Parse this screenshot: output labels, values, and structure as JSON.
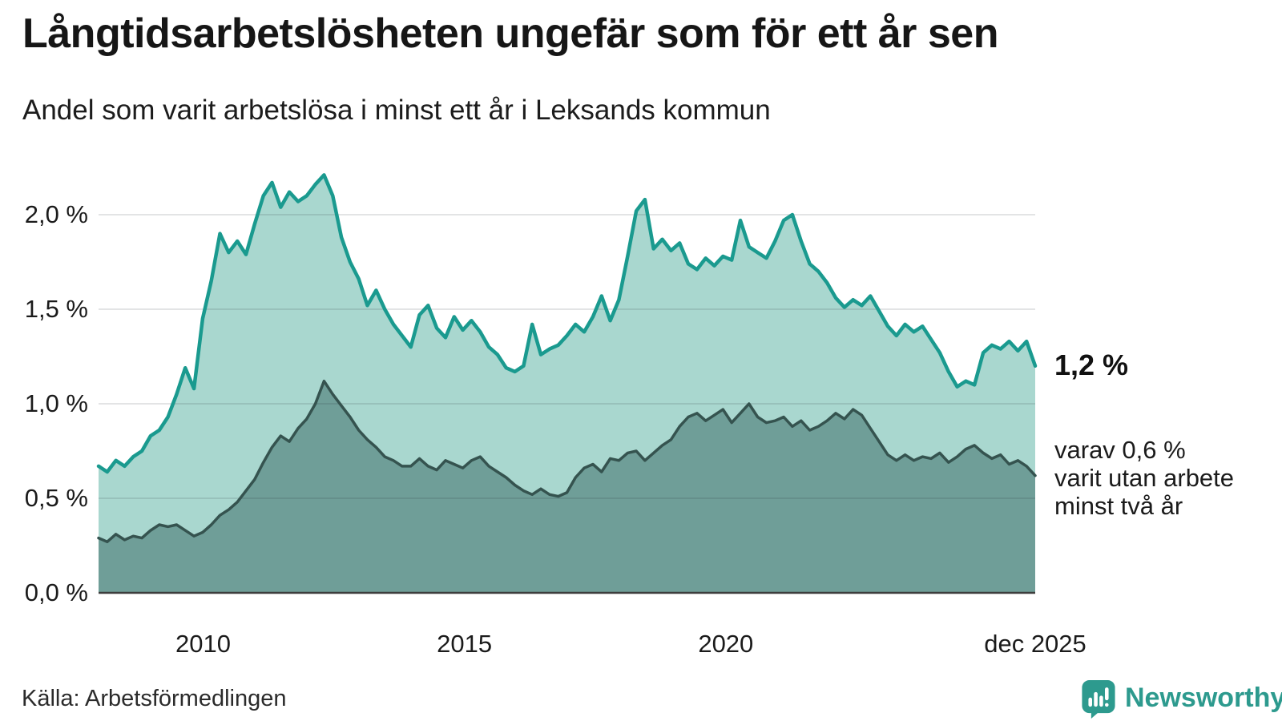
{
  "header": {
    "title": "Långtidsarbetslösheten ungefär som för ett år sen",
    "subtitle": "Andel som varit arbetslösa i minst ett år i Leksands kommun"
  },
  "chart_data": {
    "type": "area",
    "title": "Långtidsarbetslösheten ungefär som för ett år sen",
    "subtitle": "Andel som varit arbetslösa i minst ett år i Leksands kommun",
    "xlabel": "",
    "ylabel": "",
    "unit": "%",
    "grid": true,
    "legend": "none",
    "x_start": 2008,
    "x_end": 2025.92,
    "ylim": [
      0,
      2.29
    ],
    "grid_color": "rgba(35,45,55,0.13)",
    "axis_color": "#3d3d3d",
    "y_ticks": [
      {
        "value": 2.0,
        "label": "2,0 %"
      },
      {
        "value": 1.5,
        "label": "1,5 %"
      },
      {
        "value": 1.0,
        "label": "1,0 %"
      },
      {
        "value": 0.5,
        "label": "0,5 %"
      },
      {
        "value": 0.0,
        "label": "0,0 %"
      }
    ],
    "x_ticks": [
      {
        "value": 2010,
        "label": "2010"
      },
      {
        "value": 2015,
        "label": "2015"
      },
      {
        "value": 2020,
        "label": "2020"
      },
      {
        "value": 2025.92,
        "label": "dec 2025"
      }
    ],
    "series": [
      {
        "name": "Arbetslösa minst ett år",
        "color": "#1a9a8f",
        "fill": "#a9d7cf",
        "line_width": 4.5,
        "values": [
          0.67,
          0.64,
          0.7,
          0.67,
          0.72,
          0.75,
          0.83,
          0.86,
          0.93,
          1.05,
          1.19,
          1.08,
          1.45,
          1.65,
          1.9,
          1.8,
          1.86,
          1.79,
          1.95,
          2.1,
          2.17,
          2.04,
          2.12,
          2.07,
          2.1,
          2.16,
          2.21,
          2.1,
          1.88,
          1.75,
          1.66,
          1.52,
          1.6,
          1.5,
          1.42,
          1.36,
          1.3,
          1.47,
          1.52,
          1.4,
          1.35,
          1.46,
          1.39,
          1.44,
          1.38,
          1.3,
          1.26,
          1.19,
          1.17,
          1.2,
          1.42,
          1.26,
          1.29,
          1.31,
          1.36,
          1.42,
          1.38,
          1.46,
          1.57,
          1.44,
          1.55,
          1.78,
          2.02,
          2.08,
          1.82,
          1.87,
          1.81,
          1.85,
          1.74,
          1.71,
          1.77,
          1.73,
          1.78,
          1.76,
          1.97,
          1.83,
          1.8,
          1.77,
          1.86,
          1.97,
          2.0,
          1.86,
          1.74,
          1.7,
          1.64,
          1.56,
          1.51,
          1.55,
          1.52,
          1.57,
          1.49,
          1.41,
          1.36,
          1.42,
          1.38,
          1.41,
          1.34,
          1.27,
          1.17,
          1.09,
          1.12,
          1.1,
          1.27,
          1.31,
          1.29,
          1.33,
          1.28,
          1.33,
          1.2
        ]
      },
      {
        "name": "Utan arbete minst två år",
        "color": "#35534f",
        "fill": "#6f9e98",
        "line_width": 3.5,
        "values": [
          0.29,
          0.27,
          0.31,
          0.28,
          0.3,
          0.29,
          0.33,
          0.36,
          0.35,
          0.36,
          0.33,
          0.3,
          0.32,
          0.36,
          0.41,
          0.44,
          0.48,
          0.54,
          0.6,
          0.69,
          0.77,
          0.83,
          0.8,
          0.87,
          0.92,
          1.0,
          1.12,
          1.05,
          0.99,
          0.93,
          0.86,
          0.81,
          0.77,
          0.72,
          0.7,
          0.67,
          0.67,
          0.71,
          0.67,
          0.65,
          0.7,
          0.68,
          0.66,
          0.7,
          0.72,
          0.67,
          0.64,
          0.61,
          0.57,
          0.54,
          0.52,
          0.55,
          0.52,
          0.51,
          0.53,
          0.61,
          0.66,
          0.68,
          0.64,
          0.71,
          0.7,
          0.74,
          0.75,
          0.7,
          0.74,
          0.78,
          0.81,
          0.88,
          0.93,
          0.95,
          0.91,
          0.94,
          0.97,
          0.9,
          0.95,
          1.0,
          0.93,
          0.9,
          0.91,
          0.93,
          0.88,
          0.91,
          0.86,
          0.88,
          0.91,
          0.95,
          0.92,
          0.97,
          0.94,
          0.87,
          0.8,
          0.73,
          0.7,
          0.73,
          0.7,
          0.72,
          0.71,
          0.74,
          0.69,
          0.72,
          0.76,
          0.78,
          0.74,
          0.71,
          0.73,
          0.68,
          0.7,
          0.67,
          0.62
        ]
      }
    ],
    "annotations": {
      "latest": "1,2 %",
      "line1": "varav 0,6 %",
      "line2": "varit utan arbete",
      "line3": "minst två år"
    }
  },
  "footer": {
    "source": "Källa: Arbetsförmedlingen",
    "brand": "Newsworthy"
  },
  "colors": {
    "accent_teal": "#1a9a8f",
    "light_fill": "#a9d7cf",
    "dark_line": "#35534f",
    "dark_fill": "#6f9e98",
    "brand_teal": "#2d9a8e"
  }
}
